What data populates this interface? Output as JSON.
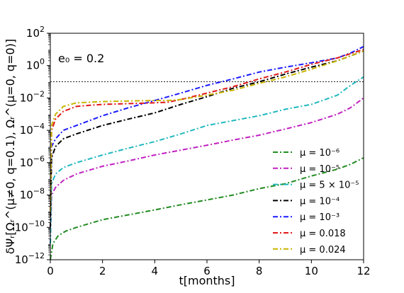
{
  "chart_data": {
    "type": "line",
    "title": "",
    "annotation": "e₀ = 0.2",
    "xlabel": "t[months]",
    "ylabel": "δΨᵣ[Ωᵣ^(μ≠0, q=0.1), Ωᵣ^(μ=0, q=0)]",
    "x_scale": "linear",
    "y_scale": "log",
    "xlim": [
      0,
      12
    ],
    "ylim": [
      1e-12,
      100
    ],
    "xticks": [
      0,
      2,
      4,
      6,
      8,
      10,
      12
    ],
    "xtick_labels": [
      "0",
      "2",
      "4",
      "6",
      "8",
      "10",
      "12"
    ],
    "yticks": [
      1e-12,
      1e-10,
      1e-08,
      1e-06,
      0.0001,
      0.01,
      1,
      100
    ],
    "ytick_labels": [
      {
        "base": "10",
        "exp": "−12"
      },
      {
        "base": "10",
        "exp": "−10"
      },
      {
        "base": "10",
        "exp": "−8"
      },
      {
        "base": "10",
        "exp": "−6"
      },
      {
        "base": "10",
        "exp": "−4"
      },
      {
        "base": "10",
        "exp": "−2"
      },
      {
        "base": "10",
        "exp": "0"
      },
      {
        "base": "10",
        "exp": "2"
      }
    ],
    "reference_line": {
      "y": 0.1,
      "style": "dotted",
      "color": "#000000"
    },
    "grid": false,
    "legend_position": "lower-right",
    "series": [
      {
        "name": "μ = 10⁻⁶",
        "color": "#228b22",
        "x": [
          0,
          0.1,
          0.3,
          0.6,
          1,
          2,
          3,
          4,
          5,
          6,
          7,
          8,
          9,
          10,
          11,
          11.5,
          12
        ],
        "y": [
          1e-12,
          1e-11,
          3e-11,
          6e-11,
          1e-10,
          3e-10,
          6e-10,
          1.2e-09,
          2.5e-09,
          5e-09,
          1e-08,
          2.5e-08,
          5e-08,
          1.5e-07,
          4e-07,
          8e-07,
          2e-06
        ]
      },
      {
        "name": "μ = 10⁻⁵",
        "color": "#c020c0",
        "x": [
          0,
          0.05,
          0.2,
          0.5,
          1,
          2,
          3,
          4,
          5,
          6,
          7,
          8,
          9,
          10,
          11,
          11.5,
          12
        ],
        "y": [
          1e-11,
          1e-08,
          3e-08,
          8e-08,
          2e-07,
          6e-07,
          1.3e-06,
          3e-06,
          6e-06,
          1.2e-05,
          2.5e-05,
          5e-05,
          0.00012,
          0.0003,
          0.001,
          0.0025,
          0.01
        ]
      },
      {
        "name": "μ = 5 × 10⁻⁵",
        "color": "#20b8c0",
        "x": [
          0,
          0.05,
          0.2,
          0.5,
          1,
          2,
          3,
          4,
          5,
          6,
          7,
          8,
          9,
          10,
          11,
          11.5,
          12
        ],
        "y": [
          1e-11,
          5e-08,
          2e-07,
          5e-07,
          1e-06,
          3e-06,
          8e-06,
          2e-05,
          6e-05,
          0.0002,
          0.0004,
          0.0008,
          0.002,
          0.004,
          0.015,
          0.06,
          0.2
        ]
      },
      {
        "name": "μ = 10⁻⁴",
        "color": "#000000",
        "x": [
          0,
          0.05,
          0.2,
          0.5,
          1,
          2,
          3,
          4,
          5,
          6,
          7,
          8,
          9,
          10,
          11,
          11.5,
          12
        ],
        "y": [
          1e-10,
          2e-06,
          1e-05,
          3e-05,
          6e-05,
          0.0002,
          0.0005,
          0.0012,
          0.004,
          0.012,
          0.04,
          0.1,
          0.3,
          0.8,
          2,
          4,
          8
        ]
      },
      {
        "name": "μ = 10⁻³",
        "color": "#1a1aff",
        "x": [
          0,
          0.05,
          0.2,
          0.5,
          1,
          2,
          3,
          4,
          5,
          6,
          7,
          8,
          9,
          10,
          11,
          11.5,
          12
        ],
        "y": [
          1e-09,
          1e-05,
          3e-05,
          0.0001,
          0.0002,
          0.0008,
          0.0025,
          0.007,
          0.02,
          0.06,
          0.15,
          0.4,
          0.8,
          1.5,
          3,
          6,
          15.0
        ]
      },
      {
        "name": "μ = 0.018",
        "color": "#e01818",
        "x": [
          0,
          0.05,
          0.2,
          0.5,
          1,
          1.5,
          2,
          3,
          4,
          4.5,
          5,
          6,
          7,
          8,
          9,
          10,
          11,
          12
        ],
        "y": [
          1e-09,
          0.0001,
          0.0005,
          0.0015,
          0.003,
          0.0035,
          0.004,
          0.0045,
          0.005,
          0.0055,
          0.008,
          0.02,
          0.05,
          0.15,
          0.4,
          1.2,
          3,
          10.0
        ]
      },
      {
        "name": "μ = 0.024",
        "color": "#c8b400",
        "x": [
          0,
          0.05,
          0.2,
          0.5,
          1,
          1.5,
          2,
          3,
          4,
          4.5,
          5,
          6,
          7,
          8,
          9,
          10,
          11,
          12
        ],
        "y": [
          1e-09,
          0.0002,
          0.001,
          0.003,
          0.005,
          0.0055,
          0.006,
          0.0065,
          0.007,
          0.007,
          0.008,
          0.015,
          0.03,
          0.08,
          0.2,
          0.6,
          2,
          8
        ]
      }
    ]
  }
}
